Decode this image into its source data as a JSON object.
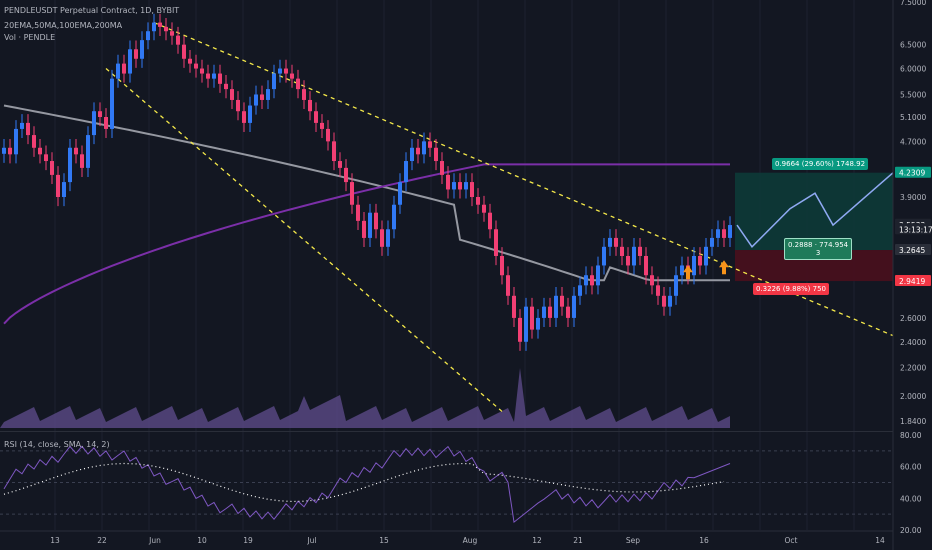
{
  "header": {
    "symbol_line": "PENDLEUSDT Perpetual Contract, 1D, BYBIT",
    "ma_line": "20EMA,50MA,100EMA,200MA",
    "vol_line": "Vol · PENDLE",
    "rsi_line": "RSI (14, close, SMA, 14, 2)"
  },
  "colors": {
    "background": "#131722",
    "up": "#3179f5",
    "down": "#f23f74",
    "ma_grey": "#9598a1",
    "ma_purple": "#7b2fa8",
    "trendline": "#f5e94a",
    "target_zone": "#0d3a37",
    "stop_zone": "#4a0f1d",
    "target_badge": "#089981",
    "stop_badge": "#f23645",
    "entry_badge": "#1f7a5a",
    "arrow": "#f7931a",
    "rsi_line": "#7e57c2"
  },
  "price_axis": [
    "7.5000",
    "6.5000",
    "6.0000",
    "5.5000",
    "5.1000",
    "4.7000",
    "4.2309",
    "3.9000",
    "3.5533",
    "3.2645",
    "2.9419",
    "2.6000",
    "2.4000",
    "2.2000",
    "2.0000",
    "1.8400"
  ],
  "price_badges": [
    {
      "label": "4.2309",
      "value": 4.2309,
      "color": "#089981"
    },
    {
      "label": "3.5533",
      "value": 3.5533,
      "color": "#1e222d"
    },
    {
      "label": "13:13:17",
      "value": 3.5,
      "color": "#1e222d"
    },
    {
      "label": "3.2645",
      "value": 3.2645,
      "color": "#2a2e39"
    },
    {
      "label": "2.9419",
      "value": 2.9419,
      "color": "#f23645"
    }
  ],
  "rsi_axis": [
    "80.00",
    "60.00",
    "40.00",
    "20.00"
  ],
  "time_axis": [
    "13",
    "22",
    "Jun",
    "10",
    "19",
    "Jul",
    "15",
    "Aug",
    "12",
    "21",
    "Sep",
    "16",
    "Oct",
    "14"
  ],
  "position_tool": {
    "target_label": "0.9664 (29.60%) 1748.92",
    "entry_label_line1": "0.2888 · 774.954",
    "entry_label_line2": "3",
    "stop_label": "0.3226 (9.88%) 750",
    "target": 4.2309,
    "entry": 3.2645,
    "stop": 2.9419
  },
  "chart_data": {
    "type": "candlestick",
    "timeframe": "1D",
    "ylim": [
      1.84,
      7.5
    ],
    "y_scale": "log",
    "candles_close": [
      4.6,
      4.5,
      4.9,
      5.0,
      4.8,
      4.6,
      4.5,
      4.4,
      4.2,
      3.9,
      4.1,
      4.6,
      4.5,
      4.3,
      4.8,
      5.2,
      5.1,
      4.9,
      5.8,
      6.1,
      5.9,
      6.4,
      6.2,
      6.6,
      6.8,
      7.0,
      6.9,
      6.8,
      6.7,
      6.5,
      6.2,
      6.1,
      6.0,
      5.9,
      5.8,
      5.9,
      5.7,
      5.6,
      5.4,
      5.2,
      5.0,
      5.3,
      5.5,
      5.4,
      5.6,
      5.9,
      6.0,
      5.9,
      5.8,
      5.6,
      5.4,
      5.2,
      5.0,
      4.9,
      4.7,
      4.4,
      4.3,
      4.1,
      3.8,
      3.6,
      3.4,
      3.7,
      3.5,
      3.3,
      3.5,
      3.8,
      4.1,
      4.4,
      4.6,
      4.5,
      4.7,
      4.6,
      4.4,
      4.2,
      4.0,
      4.1,
      4.0,
      4.1,
      3.9,
      3.8,
      3.7,
      3.5,
      3.2,
      3.0,
      2.8,
      2.6,
      2.4,
      2.7,
      2.5,
      2.6,
      2.7,
      2.6,
      2.8,
      2.7,
      2.6,
      2.8,
      2.9,
      3.0,
      2.9,
      3.1,
      3.3,
      3.4,
      3.3,
      3.2,
      3.1,
      3.3,
      3.2,
      3.0,
      2.9,
      2.8,
      2.7,
      2.8,
      3.0,
      3.1,
      3.0,
      3.2,
      3.1,
      3.3,
      3.4,
      3.5,
      3.4,
      3.55
    ],
    "ma_grey_start": 5.3,
    "ma_purple_end": 4.35,
    "rsi_ylim": [
      20,
      80
    ],
    "rsi_levels": [
      70,
      50,
      30
    ],
    "rsi_last": 62
  }
}
